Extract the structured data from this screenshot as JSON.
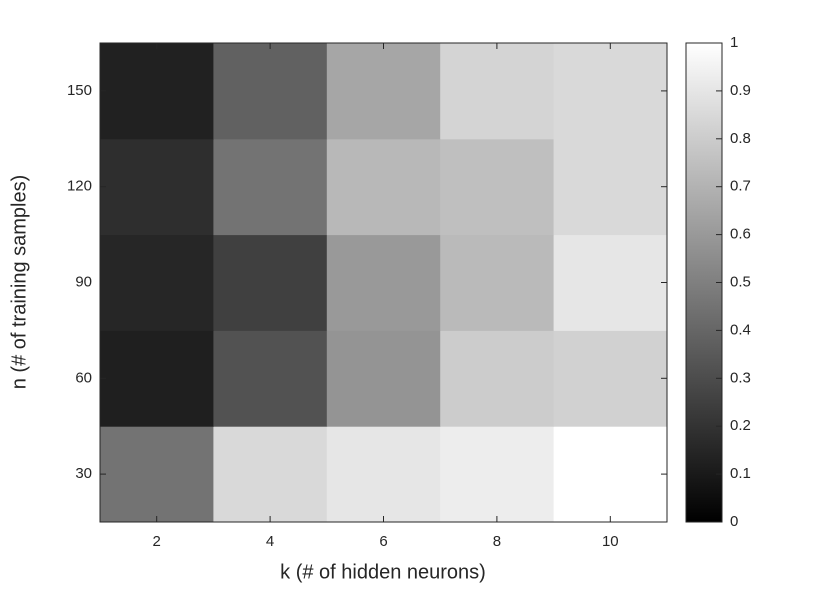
{
  "chart_data": {
    "type": "heatmap",
    "x_label": "k (# of hidden neurons)",
    "y_label": "n (# of training samples)",
    "x": [
      2,
      4,
      6,
      8,
      10
    ],
    "y": [
      30,
      60,
      90,
      120,
      150
    ],
    "z": [
      [
        0.45,
        0.85,
        0.9,
        0.93,
        1.0
      ],
      [
        0.12,
        0.32,
        0.58,
        0.8,
        0.82
      ],
      [
        0.15,
        0.25,
        0.6,
        0.73,
        0.9
      ],
      [
        0.18,
        0.45,
        0.72,
        0.75,
        0.85
      ],
      [
        0.13,
        0.38,
        0.65,
        0.83,
        0.85
      ]
    ],
    "colormap": "gray",
    "xlim": [
      1,
      11
    ],
    "ylim": [
      15,
      165
    ],
    "xticks": [
      2,
      4,
      6,
      8,
      10
    ],
    "yticks": [
      30,
      60,
      90,
      120,
      150
    ],
    "clim": [
      0,
      1
    ],
    "cticks": [
      0,
      0.1,
      0.2,
      0.3,
      0.4,
      0.5,
      0.6,
      0.7,
      0.8,
      0.9,
      1
    ]
  }
}
